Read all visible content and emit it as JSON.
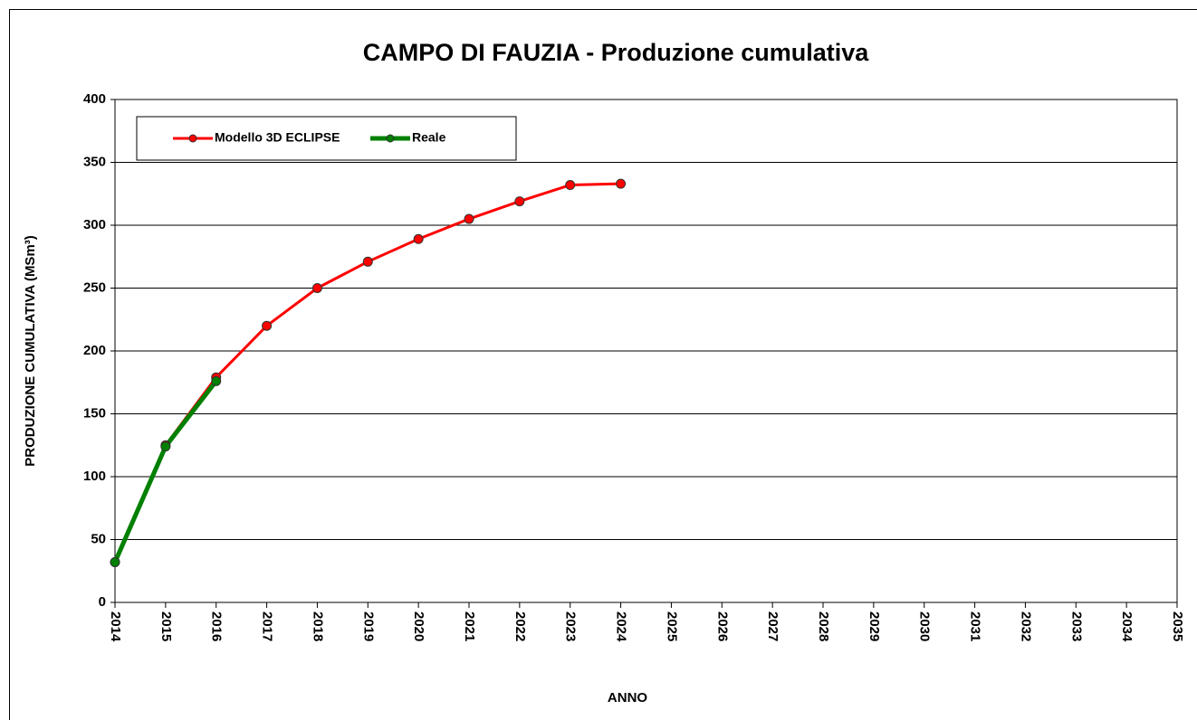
{
  "chart_data": {
    "type": "line",
    "title": "CAMPO DI FAUZIA - Produzione cumulativa",
    "x_label": "ANNO",
    "y_label": "PRODUZIONE CUMULATIVA (MSm³)",
    "x": [
      2014,
      2015,
      2016,
      2017,
      2018,
      2019,
      2020,
      2021,
      2022,
      2023,
      2024
    ],
    "series": [
      {
        "name": "Modello 3D ECLIPSE",
        "color": "#ff0000",
        "values": [
          32,
          125,
          179,
          220,
          250,
          271,
          289,
          305,
          319,
          332,
          333
        ]
      },
      {
        "name": "Reale",
        "color": "#008000",
        "values": [
          32,
          124,
          176,
          null,
          null,
          null,
          null,
          null,
          null,
          null,
          null
        ]
      }
    ],
    "xlim": [
      2014,
      2035
    ],
    "xticks": [
      2014,
      2015,
      2016,
      2017,
      2018,
      2019,
      2020,
      2021,
      2022,
      2023,
      2024,
      2025,
      2026,
      2027,
      2028,
      2029,
      2030,
      2031,
      2032,
      2033,
      2034,
      2035
    ],
    "ylim": [
      0,
      400
    ],
    "yticks": [
      0,
      50,
      100,
      150,
      200,
      250,
      300,
      350,
      400
    ],
    "grid": true,
    "legend": "top-left"
  }
}
